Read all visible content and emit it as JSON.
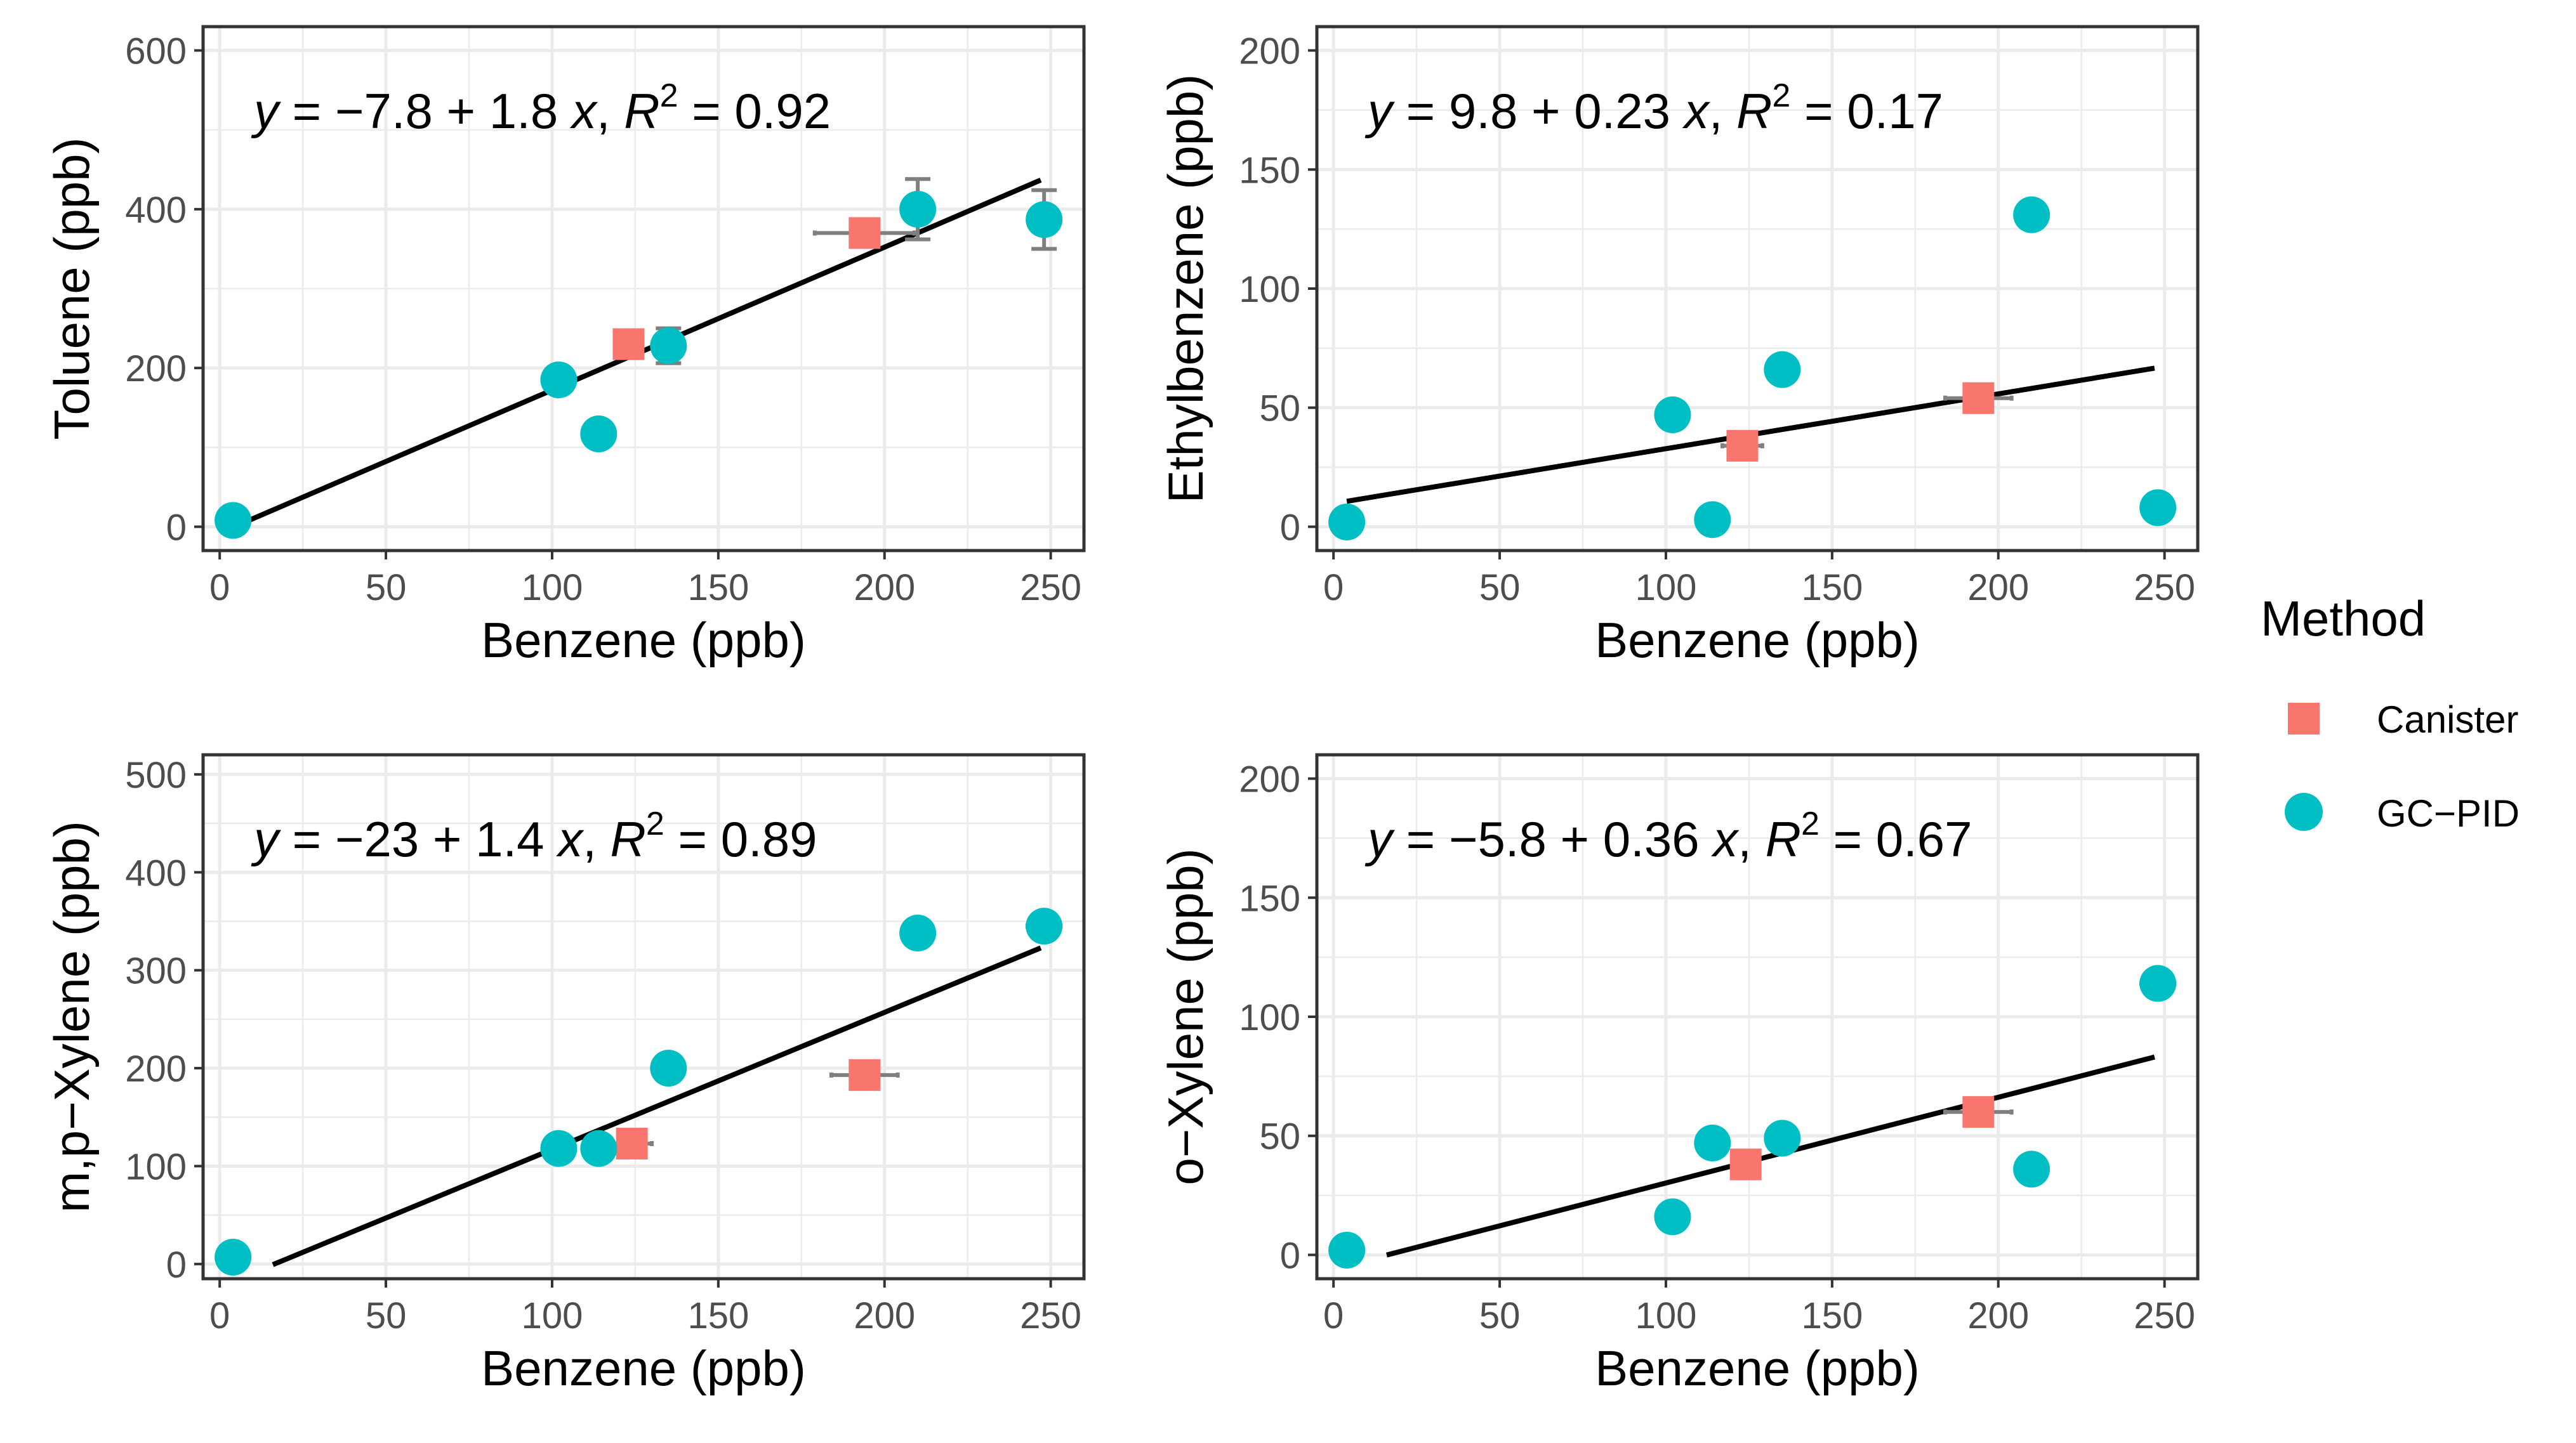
{
  "legend": {
    "title": "Method",
    "entries": [
      {
        "label": "Canister",
        "shape": "square",
        "color": "#F8766D"
      },
      {
        "label": "GC−PID",
        "shape": "circle",
        "color": "#00BFC4"
      }
    ]
  },
  "chart_data": [
    {
      "type": "scatter",
      "xlabel": "Benzene (ppb)",
      "ylabel": "Toluene (ppb)",
      "xlim": [
        -5,
        260
      ],
      "ylim": [
        -30,
        630
      ],
      "xticks": [
        0,
        50,
        100,
        150,
        200,
        250
      ],
      "yticks": [
        0,
        200,
        400,
        600
      ],
      "equation": {
        "a": "−7.8",
        "b": "1.8",
        "r2": "0.92"
      },
      "fit": {
        "x": [
          4,
          247
        ],
        "y": [
          -0.6,
          436.8
        ]
      },
      "series": [
        {
          "name": "Canister",
          "points": [
            {
              "x": 123,
              "y": 230,
              "xerr": 4
            },
            {
              "x": 194,
              "y": 370,
              "xerr": 15
            }
          ]
        },
        {
          "name": "GC−PID",
          "points": [
            {
              "x": 4,
              "y": 8
            },
            {
              "x": 102,
              "y": 185,
              "yerr": 10
            },
            {
              "x": 114,
              "y": 117
            },
            {
              "x": 135,
              "y": 228,
              "yerr": 22
            },
            {
              "x": 210,
              "y": 400,
              "yerr": 38
            },
            {
              "x": 248,
              "y": 387,
              "yerr": 37
            }
          ]
        }
      ]
    },
    {
      "type": "scatter",
      "xlabel": "Benzene (ppb)",
      "ylabel": "Ethylbenzene (ppb)",
      "xlim": [
        -5,
        260
      ],
      "ylim": [
        -10,
        210
      ],
      "xticks": [
        0,
        50,
        100,
        150,
        200,
        250
      ],
      "yticks": [
        0,
        50,
        100,
        150,
        200
      ],
      "equation": {
        "a": "9.8",
        "b": "0.23",
        "r2": "0.17"
      },
      "fit": {
        "x": [
          4,
          247
        ],
        "y": [
          10.7,
          66.6
        ]
      },
      "series": [
        {
          "name": "Canister",
          "points": [
            {
              "x": 123,
              "y": 34,
              "xerr": 6
            },
            {
              "x": 194,
              "y": 54,
              "xerr": 10
            }
          ]
        },
        {
          "name": "GC−PID",
          "points": [
            {
              "x": 4,
              "y": 2
            },
            {
              "x": 102,
              "y": 47
            },
            {
              "x": 114,
              "y": 3
            },
            {
              "x": 135,
              "y": 66
            },
            {
              "x": 210,
              "y": 131
            },
            {
              "x": 248,
              "y": 8,
              "xerr": 4
            }
          ]
        }
      ]
    },
    {
      "type": "scatter",
      "xlabel": "Benzene (ppb)",
      "ylabel": "m,p−Xylene (ppb)",
      "xlim": [
        -5,
        260
      ],
      "ylim": [
        -15,
        520
      ],
      "xticks": [
        0,
        50,
        100,
        150,
        200,
        250
      ],
      "yticks": [
        0,
        100,
        200,
        300,
        400,
        500
      ],
      "equation": {
        "a": "−23",
        "b": "1.4",
        "r2": "0.89"
      },
      "fit": {
        "x": [
          16,
          247
        ],
        "y": [
          -0.6,
          322.8
        ]
      },
      "series": [
        {
          "name": "Canister",
          "points": [
            {
              "x": 124,
              "y": 123,
              "xerr": 6
            },
            {
              "x": 194,
              "y": 193,
              "xerr": 10
            }
          ]
        },
        {
          "name": "GC−PID",
          "points": [
            {
              "x": 4,
              "y": 7
            },
            {
              "x": 102,
              "y": 118
            },
            {
              "x": 114,
              "y": 118
            },
            {
              "x": 135,
              "y": 200
            },
            {
              "x": 210,
              "y": 338
            },
            {
              "x": 248,
              "y": 345,
              "xerr": 5
            }
          ]
        }
      ]
    },
    {
      "type": "scatter",
      "xlabel": "Benzene (ppb)",
      "ylabel": "o−Xylene (ppb)",
      "xlim": [
        -5,
        260
      ],
      "ylim": [
        -10,
        210
      ],
      "xticks": [
        0,
        50,
        100,
        150,
        200,
        250
      ],
      "yticks": [
        0,
        50,
        100,
        150,
        200
      ],
      "equation": {
        "a": "−5.8",
        "b": "0.36",
        "r2": "0.67"
      },
      "fit": {
        "x": [
          16,
          247
        ],
        "y": [
          -0.04,
          83.1
        ]
      },
      "series": [
        {
          "name": "Canister",
          "points": [
            {
              "x": 124,
              "y": 38,
              "xerr": 4
            },
            {
              "x": 194,
              "y": 60,
              "xerr": 10
            }
          ]
        },
        {
          "name": "GC−PID",
          "points": [
            {
              "x": 4,
              "y": 2
            },
            {
              "x": 102,
              "y": 16
            },
            {
              "x": 114,
              "y": 47
            },
            {
              "x": 135,
              "y": 49
            },
            {
              "x": 210,
              "y": 36
            },
            {
              "x": 248,
              "y": 114,
              "xerr": 5
            }
          ]
        }
      ]
    }
  ]
}
